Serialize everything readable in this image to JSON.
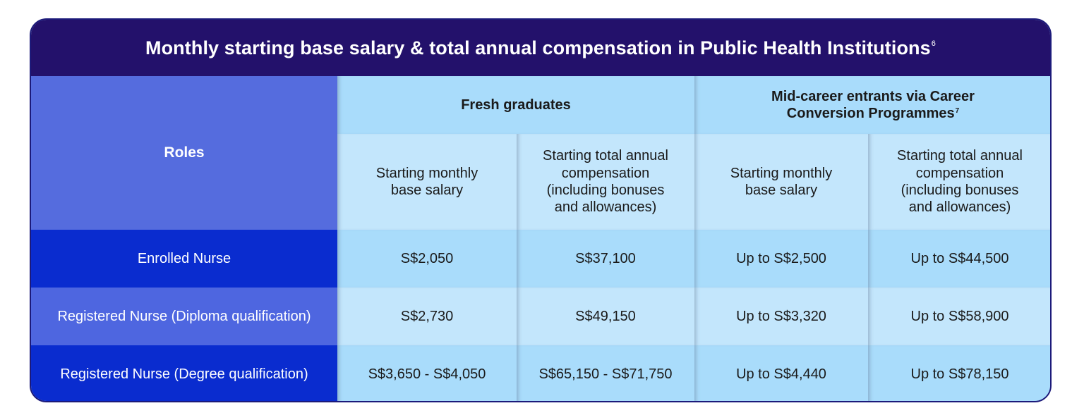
{
  "title": "Monthly starting base salary & total annual compensation in Public Health Institutions",
  "title_footnote": "6",
  "columns": {
    "roles_label": "Roles",
    "fresh_graduates": "Fresh graduates",
    "mid_career_line1": "Mid-career entrants via Career",
    "mid_career_line2": "Conversion Programmes",
    "mid_career_footnote": "7",
    "starting_monthly_line1": "Starting monthly",
    "starting_monthly_line2": "base salary",
    "total_annual_line1": "Starting total annual",
    "total_annual_line2": "compensation",
    "total_annual_line3": "(including bonuses",
    "total_annual_line4": "and allowances)"
  },
  "rows": [
    {
      "role": "Enrolled Nurse",
      "fresh_monthly": "S$2,050",
      "fresh_annual": "S$37,100",
      "mid_monthly": "Up to S$2,500",
      "mid_annual": "Up to S$44,500"
    },
    {
      "role": "Registered Nurse (Diploma qualification)",
      "fresh_monthly": "S$2,730",
      "fresh_annual": "S$49,150",
      "mid_monthly": "Up to S$3,320",
      "mid_annual": "Up to S$58,900"
    },
    {
      "role": "Registered Nurse (Degree qualification)",
      "fresh_monthly": "S$3,650 - S$4,050",
      "fresh_annual": "S$65,150 - S$71,750",
      "mid_monthly": "Up to S$4,440",
      "mid_annual": "Up to S$78,150"
    }
  ],
  "colors": {
    "title_bg": "#23116b",
    "roles_bg": "#556cde",
    "row_label_dark": "#0a2ccf",
    "row_label_mid": "#4e66e0",
    "cell_light": "#c3e6fc",
    "cell_dark": "#a9dcfb"
  }
}
